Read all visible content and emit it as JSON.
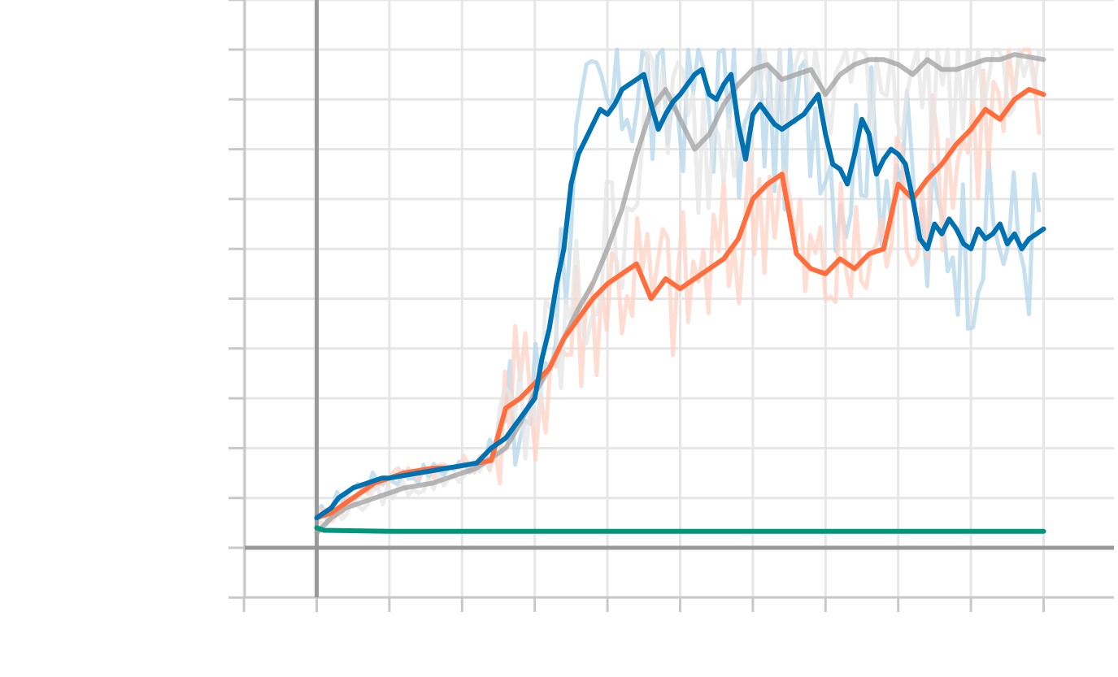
{
  "chart_data": {
    "type": "line",
    "title": "",
    "xlabel": "",
    "ylabel": "",
    "xlim": [
      -1,
      11
    ],
    "ylim": [
      -1,
      11
    ],
    "x_ticks": [
      -1,
      0,
      1,
      2,
      3,
      4,
      5,
      6,
      7,
      8,
      9,
      10
    ],
    "y_ticks": [
      -1,
      0,
      1,
      2,
      3,
      4,
      5,
      6,
      7,
      8,
      9,
      10,
      11
    ],
    "tick_labels_visible": false,
    "grid": true,
    "colors": {
      "series_a": "#0072b2",
      "series_b": "#ff6e3c",
      "series_c": "#a0a0a0",
      "series_d": "#00967e",
      "band_a": "#b4d5eb",
      "band_b": "#ffd2c3",
      "band_c": "#e6e6e6"
    },
    "series": [
      {
        "color_key": "series_a",
        "raw_color_key": "band_a",
        "x": [
          0.0,
          0.1,
          0.2,
          0.3,
          0.4,
          0.5,
          0.6,
          0.7,
          0.8,
          0.9,
          1.0,
          1.2,
          1.4,
          1.6,
          1.8,
          2.0,
          2.2,
          2.4,
          2.6,
          2.8,
          3.0,
          3.1,
          3.2,
          3.3,
          3.4,
          3.5,
          3.6,
          3.7,
          3.8,
          3.9,
          4.0,
          4.1,
          4.2,
          4.3,
          4.4,
          4.5,
          4.6,
          4.7,
          4.8,
          4.9,
          5.0,
          5.1,
          5.2,
          5.3,
          5.4,
          5.5,
          5.6,
          5.7,
          5.8,
          5.9,
          6.0,
          6.1,
          6.2,
          6.3,
          6.4,
          6.5,
          6.6,
          6.7,
          6.8,
          6.9,
          7.0,
          7.1,
          7.2,
          7.3,
          7.4,
          7.5,
          7.6,
          7.7,
          7.8,
          7.9,
          8.0,
          8.1,
          8.2,
          8.3,
          8.4,
          8.5,
          8.6,
          8.7,
          8.8,
          8.9,
          9.0,
          9.1,
          9.2,
          9.3,
          9.4,
          9.5,
          9.6,
          9.7,
          9.8,
          9.9,
          10.0
        ],
        "y": [
          0.6,
          0.7,
          0.8,
          1.0,
          1.1,
          1.2,
          1.25,
          1.3,
          1.35,
          1.4,
          1.4,
          1.45,
          1.5,
          1.55,
          1.6,
          1.65,
          1.7,
          2.0,
          2.2,
          2.6,
          3.0,
          3.8,
          4.4,
          5.3,
          6.0,
          7.3,
          7.9,
          8.2,
          8.5,
          8.8,
          8.7,
          8.9,
          9.2,
          9.3,
          9.4,
          9.5,
          8.9,
          8.4,
          8.7,
          8.95,
          9.1,
          9.3,
          9.5,
          9.6,
          9.1,
          9.0,
          9.3,
          9.5,
          8.5,
          7.8,
          8.7,
          8.9,
          8.7,
          8.5,
          8.4,
          8.5,
          8.6,
          8.7,
          8.9,
          9.1,
          8.3,
          7.7,
          7.6,
          7.3,
          7.9,
          8.6,
          8.3,
          7.5,
          7.8,
          8.0,
          7.9,
          7.7,
          7.0,
          6.2,
          6.0,
          6.5,
          6.3,
          6.6,
          6.4,
          6.1,
          6.0,
          6.4,
          6.2,
          6.3,
          6.5,
          6.1,
          6.3,
          6.0,
          6.2,
          6.3,
          6.4
        ]
      },
      {
        "color_key": "series_b",
        "raw_color_key": "band_b",
        "x": [
          0.0,
          0.2,
          0.4,
          0.6,
          0.8,
          1.0,
          1.2,
          1.4,
          1.6,
          1.8,
          2.0,
          2.2,
          2.4,
          2.6,
          2.8,
          3.0,
          3.2,
          3.4,
          3.6,
          3.8,
          4.0,
          4.2,
          4.4,
          4.6,
          4.8,
          5.0,
          5.2,
          5.4,
          5.6,
          5.8,
          6.0,
          6.2,
          6.4,
          6.6,
          6.8,
          7.0,
          7.2,
          7.4,
          7.6,
          7.8,
          8.0,
          8.2,
          8.4,
          8.6,
          8.8,
          9.0,
          9.2,
          9.4,
          9.6,
          9.8,
          10.0
        ],
        "y": [
          0.6,
          0.7,
          0.9,
          1.1,
          1.3,
          1.4,
          1.5,
          1.55,
          1.6,
          1.6,
          1.65,
          1.7,
          1.75,
          2.8,
          3.0,
          3.3,
          3.6,
          4.2,
          4.6,
          5.0,
          5.3,
          5.5,
          5.7,
          5.0,
          5.4,
          5.2,
          5.4,
          5.6,
          5.8,
          6.2,
          7.0,
          7.3,
          7.5,
          5.9,
          5.6,
          5.5,
          5.8,
          5.6,
          5.9,
          6.0,
          7.3,
          7.0,
          7.4,
          7.7,
          8.1,
          8.4,
          8.8,
          8.6,
          9.0,
          9.2,
          9.1
        ]
      },
      {
        "color_key": "series_c",
        "raw_color_key": "band_c",
        "x": [
          0.0,
          0.2,
          0.4,
          0.6,
          0.8,
          1.0,
          1.2,
          1.4,
          1.6,
          1.8,
          2.0,
          2.2,
          2.4,
          2.6,
          2.8,
          3.0,
          3.2,
          3.4,
          3.6,
          3.8,
          4.0,
          4.2,
          4.4,
          4.6,
          4.8,
          5.0,
          5.2,
          5.4,
          5.6,
          5.8,
          6.0,
          6.2,
          6.4,
          6.6,
          6.8,
          7.0,
          7.2,
          7.4,
          7.6,
          7.8,
          8.0,
          8.2,
          8.4,
          8.6,
          8.8,
          9.0,
          9.2,
          9.4,
          9.6,
          9.8,
          10.0
        ],
        "y": [
          0.3,
          0.6,
          0.8,
          0.9,
          1.0,
          1.1,
          1.2,
          1.25,
          1.3,
          1.4,
          1.5,
          1.6,
          1.8,
          2.0,
          2.5,
          3.1,
          3.6,
          4.2,
          4.8,
          5.3,
          6.0,
          6.8,
          7.9,
          8.8,
          9.2,
          8.6,
          8.0,
          8.3,
          8.9,
          9.3,
          9.6,
          9.7,
          9.4,
          9.5,
          9.6,
          9.1,
          9.5,
          9.7,
          9.8,
          9.8,
          9.7,
          9.5,
          9.8,
          9.6,
          9.6,
          9.7,
          9.8,
          9.8,
          9.9,
          9.85,
          9.8
        ]
      },
      {
        "color_key": "series_d",
        "x": [
          0.0,
          0.1,
          1.0,
          2.0,
          3.0,
          4.0,
          5.0,
          6.0,
          7.0,
          8.0,
          9.0,
          10.0
        ],
        "y": [
          0.4,
          0.35,
          0.33,
          0.33,
          0.33,
          0.33,
          0.33,
          0.33,
          0.33,
          0.33,
          0.33,
          0.33
        ]
      }
    ]
  }
}
